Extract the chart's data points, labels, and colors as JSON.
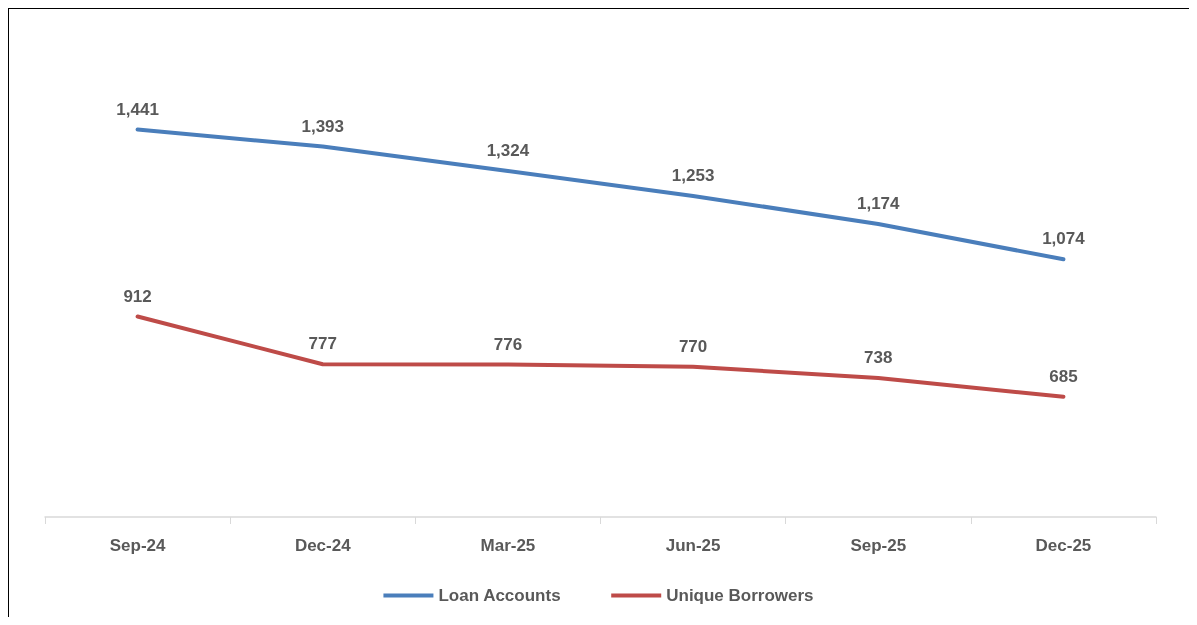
{
  "chart_data": {
    "type": "line",
    "categories": [
      "Sep-24",
      "Dec-24",
      "Mar-25",
      "Jun-25",
      "Sep-25",
      "Dec-25"
    ],
    "series": [
      {
        "name": "Loan Accounts",
        "color": "#4a7ebb",
        "values": [
          1441,
          1393,
          1324,
          1253,
          1174,
          1074
        ],
        "value_labels": [
          "1,441",
          "1,393",
          "1,324",
          "1,253",
          "1,174",
          "1,074"
        ]
      },
      {
        "name": "Unique Borrowers",
        "color": "#be4b48",
        "values": [
          912,
          777,
          776,
          770,
          738,
          685
        ],
        "value_labels": [
          "912",
          "777",
          "776",
          "770",
          "738",
          "685"
        ]
      }
    ],
    "legend": "bottom",
    "grid": false,
    "marker": "none",
    "line_style": "solid"
  }
}
